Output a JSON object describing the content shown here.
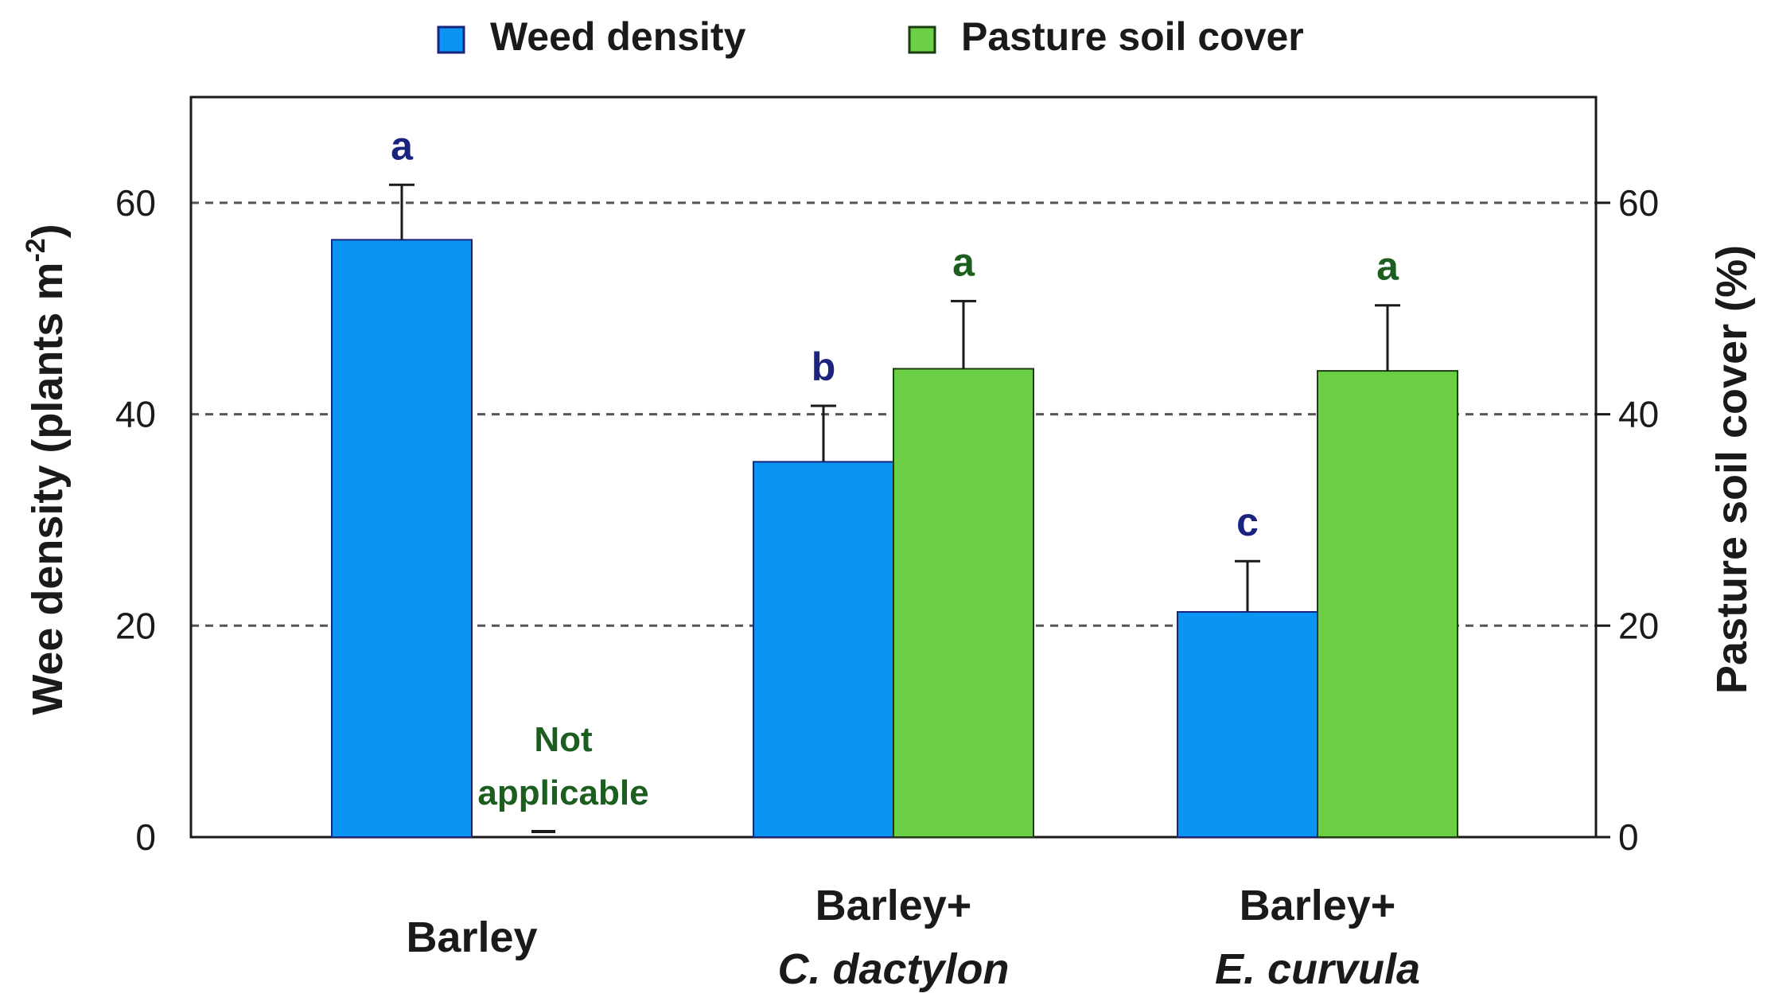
{
  "chart_data": {
    "type": "bar",
    "categories": [
      {
        "line1": "Barley",
        "line2": ""
      },
      {
        "line1": "Barley+",
        "line2": "C. dactylon"
      },
      {
        "line1": "Barley+",
        "line2": "E. curvula"
      }
    ],
    "series": [
      {
        "name": "Weed density",
        "axis": "left",
        "color": "#0a95f2",
        "values": [
          56.5,
          35.5,
          21.3
        ],
        "errors": [
          5.2,
          5.3,
          4.8
        ],
        "letters": [
          "a",
          "b",
          "c"
        ]
      },
      {
        "name": "Pasture soil cover",
        "axis": "right",
        "color": "#6cd047",
        "values": [
          null,
          44.3,
          44.1
        ],
        "errors": [
          null,
          6.4,
          6.2
        ],
        "letters": [
          "",
          "a",
          "a"
        ]
      }
    ],
    "not_applicable": {
      "line1": "Not",
      "line2": "applicable"
    },
    "ylabel_left": "Wee density (plants m",
    "ylabel_left_sup": "-2",
    "ylabel_left_end": ")",
    "ylabel_right": "Pasture soil cover (%)",
    "ylim_left": [
      0,
      70
    ],
    "ylim_right": [
      0,
      70
    ],
    "yticks": [
      0,
      20,
      40,
      60
    ],
    "grid": "horizontal-dashed",
    "legend_position": "top-center"
  }
}
